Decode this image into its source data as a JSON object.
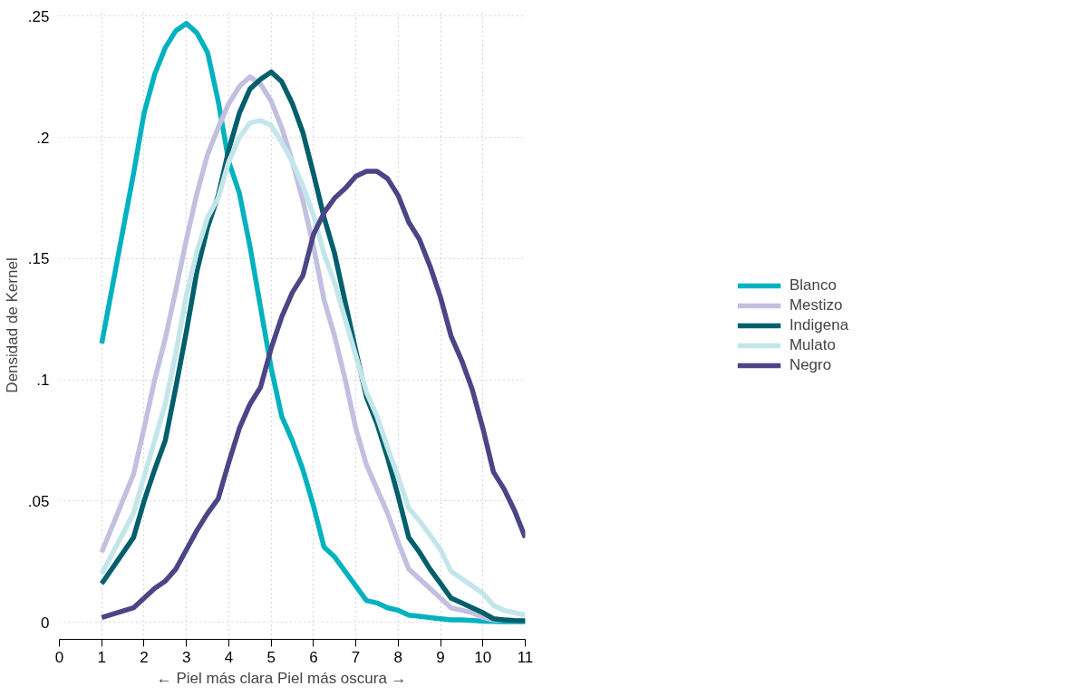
{
  "chart_data": {
    "type": "line",
    "xlabel": "← Piel más clara      Piel más oscura →",
    "ylabel": "Densidad de Kernel",
    "x": [
      1,
      1.75,
      2,
      2.25,
      2.5,
      2.75,
      3,
      3.25,
      3.5,
      3.75,
      4,
      4.25,
      4.5,
      4.75,
      5,
      5.25,
      5.5,
      5.75,
      6,
      6.25,
      6.5,
      6.75,
      7,
      7.25,
      7.5,
      7.75,
      8,
      8.25,
      8.5,
      8.75,
      9,
      9.25,
      9.5,
      9.75,
      10,
      10.25,
      10.5,
      10.75,
      11
    ],
    "series": [
      {
        "name": "Blanco",
        "color": "#00b2bf",
        "values": [
          0.115,
          0.185,
          0.21,
          0.226,
          0.237,
          0.244,
          0.247,
          0.243,
          0.235,
          0.215,
          0.19,
          0.177,
          0.155,
          0.13,
          0.105,
          0.085,
          0.075,
          0.063,
          0.048,
          0.031,
          0.027,
          0.021,
          0.015,
          0.009,
          0.008,
          0.006,
          0.005,
          0.003,
          0.0025,
          0.002,
          0.0015,
          0.001,
          0.001,
          0.0008,
          0.0005,
          0.0004,
          0.0003,
          0.0003,
          0.0003
        ]
      },
      {
        "name": "Mestizo",
        "color": "#c3bfe0",
        "values": [
          0.029,
          0.061,
          0.08,
          0.1,
          0.117,
          0.137,
          0.158,
          0.177,
          0.193,
          0.204,
          0.214,
          0.221,
          0.225,
          0.222,
          0.215,
          0.204,
          0.19,
          0.174,
          0.155,
          0.133,
          0.118,
          0.1,
          0.08,
          0.065,
          0.055,
          0.045,
          0.033,
          0.022,
          0.018,
          0.014,
          0.01,
          0.006,
          0.005,
          0.004,
          0.002,
          0.001,
          0.001,
          0.0008,
          0.0007
        ]
      },
      {
        "name": "Indigena",
        "color": "#005f6b",
        "values": [
          0.016,
          0.035,
          0.05,
          0.063,
          0.075,
          0.097,
          0.12,
          0.145,
          0.163,
          0.176,
          0.195,
          0.21,
          0.22,
          0.224,
          0.227,
          0.223,
          0.214,
          0.202,
          0.185,
          0.167,
          0.152,
          0.132,
          0.112,
          0.093,
          0.082,
          0.068,
          0.052,
          0.035,
          0.029,
          0.022,
          0.016,
          0.01,
          0.008,
          0.006,
          0.004,
          0.0015,
          0.001,
          0.0008,
          0.0007
        ]
      },
      {
        "name": "Mulato",
        "color": "#c3e6ea",
        "values": [
          0.02,
          0.045,
          0.06,
          0.075,
          0.09,
          0.111,
          0.135,
          0.153,
          0.167,
          0.175,
          0.19,
          0.2,
          0.206,
          0.207,
          0.205,
          0.198,
          0.19,
          0.18,
          0.168,
          0.152,
          0.14,
          0.125,
          0.11,
          0.095,
          0.085,
          0.072,
          0.06,
          0.047,
          0.042,
          0.036,
          0.03,
          0.021,
          0.018,
          0.015,
          0.012,
          0.007,
          0.005,
          0.004,
          0.003
        ]
      },
      {
        "name": "Negro",
        "color": "#4b4586",
        "values": [
          0.002,
          0.006,
          0.01,
          0.014,
          0.017,
          0.022,
          0.03,
          0.038,
          0.045,
          0.051,
          0.066,
          0.08,
          0.09,
          0.097,
          0.113,
          0.126,
          0.136,
          0.143,
          0.16,
          0.169,
          0.175,
          0.179,
          0.184,
          0.186,
          0.186,
          0.183,
          0.176,
          0.165,
          0.158,
          0.147,
          0.134,
          0.118,
          0.108,
          0.096,
          0.08,
          0.062,
          0.055,
          0.046,
          0.035
        ]
      }
    ],
    "xlim": [
      0,
      11
    ],
    "ylim": [
      -0.007,
      0.252
    ],
    "xticks": [
      0,
      1,
      2,
      3,
      4,
      5,
      6,
      7,
      8,
      9,
      10,
      11
    ],
    "yticks": [
      {
        "value": 0,
        "label": "0"
      },
      {
        "value": 0.05,
        "label": ".05"
      },
      {
        "value": 0.1,
        "label": ".1"
      },
      {
        "value": 0.15,
        "label": ".15"
      },
      {
        "value": 0.2,
        "label": ".2"
      },
      {
        "value": 0.25,
        "label": ".25"
      }
    ],
    "grid": true,
    "legend": "right",
    "line_style": "solid",
    "marker": "none"
  }
}
